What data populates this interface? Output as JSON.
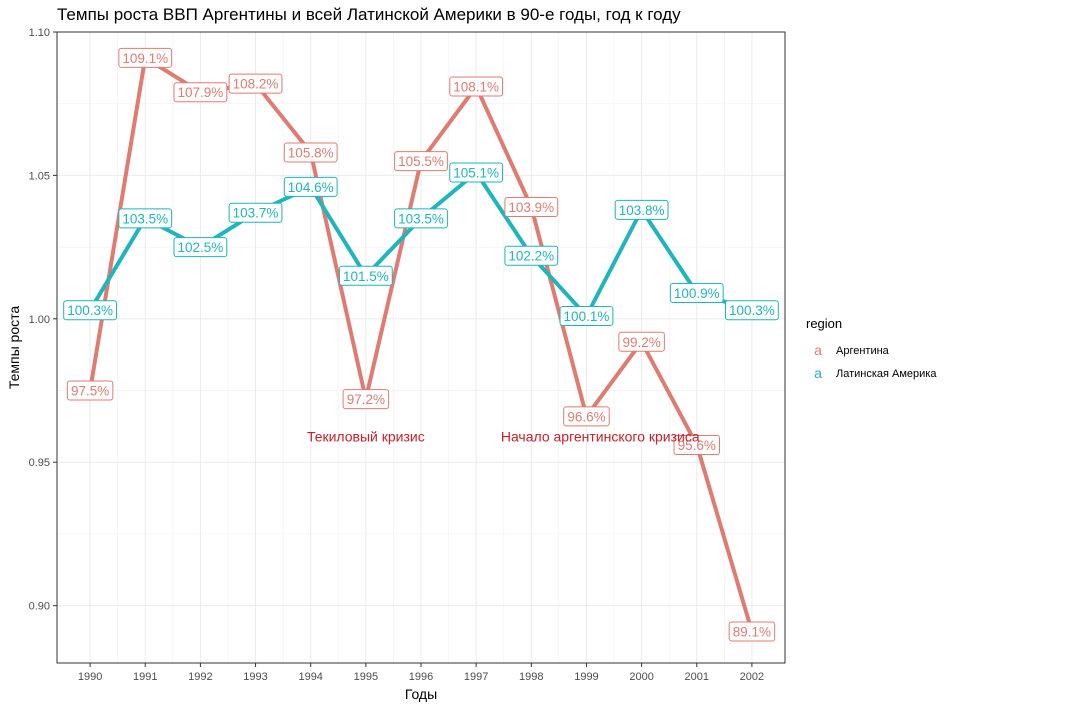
{
  "chart_data": {
    "type": "line",
    "title": "Темпы роста ВВП Аргентины и всей Латинской Америки  в 90-е годы, год к году",
    "xlabel": "Годы",
    "ylabel": "Темпы роста",
    "x": [
      1990,
      1991,
      1992,
      1993,
      1994,
      1995,
      1996,
      1997,
      1998,
      1999,
      2000,
      2001,
      2002
    ],
    "ylim": [
      0.88,
      1.1
    ],
    "yticks": [
      0.9,
      0.95,
      1.0,
      1.05,
      1.1
    ],
    "ytick_labels": [
      "0.90",
      "0.95",
      "1.00",
      "1.05",
      "1.10"
    ],
    "grid": true,
    "legend": {
      "title": "region",
      "position": "right",
      "key_glyph": "a"
    },
    "series": [
      {
        "name": "Аргентина",
        "color": "#E07B72",
        "values": [
          0.975,
          1.091,
          1.079,
          1.082,
          1.058,
          0.972,
          1.055,
          1.081,
          1.039,
          0.966,
          0.992,
          0.956,
          0.891
        ],
        "labels": [
          "97.5%",
          "109.1%",
          "107.9%",
          "108.2%",
          "105.8%",
          "97.2%",
          "105.5%",
          "108.1%",
          "103.9%",
          "96.6%",
          "99.2%",
          "95.6%",
          "89.1%"
        ]
      },
      {
        "name": "Латинская Америка",
        "color": "#1FB5BC",
        "values": [
          1.003,
          1.035,
          1.025,
          1.037,
          1.046,
          1.015,
          1.035,
          1.051,
          1.022,
          1.001,
          1.038,
          1.009,
          1.003
        ],
        "labels": [
          "100.3%",
          "103.5%",
          "102.5%",
          "103.7%",
          "104.6%",
          "101.5%",
          "103.5%",
          "105.1%",
          "102.2%",
          "100.1%",
          "103.8%",
          "100.9%",
          "100.3%"
        ]
      }
    ],
    "annotations": [
      {
        "text": "Текиловый кризис",
        "x": 1995,
        "y": 0.959,
        "color": "#C8202A"
      },
      {
        "text": "Начало аргентинского кризиса",
        "x": 1999.25,
        "y": 0.959,
        "color": "#C8202A"
      }
    ]
  }
}
